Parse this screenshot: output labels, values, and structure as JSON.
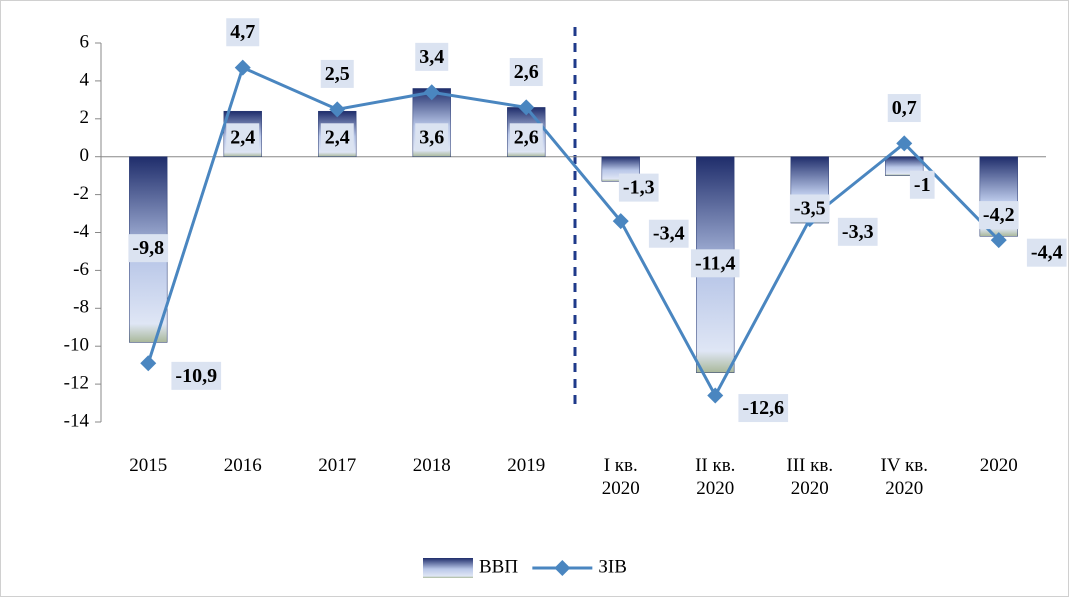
{
  "chart_data": {
    "type": "bar_line",
    "categories": [
      "2015",
      "2016",
      "2017",
      "2018",
      "2019",
      "І кв. 2020",
      "ІІ кв. 2020",
      "ІІІ кв. 2020",
      "ІV кв. 2020",
      "2020"
    ],
    "series": [
      {
        "name": "ВВП",
        "type": "bar",
        "color": "#22336e",
        "values": [
          -9.8,
          2.4,
          2.4,
          3.6,
          2.6,
          -1.3,
          -11.4,
          -3.5,
          -1,
          -4.2
        ],
        "value_labels": [
          "-9,8",
          "2,4",
          "2,4",
          "3,6",
          "2,6",
          "-1,3",
          "-11,4",
          "-3,5",
          "-1",
          "-4,2"
        ]
      },
      {
        "name": "ЗІВ",
        "type": "line",
        "color": "#4a86c0",
        "values": [
          -10.9,
          4.7,
          2.5,
          3.4,
          2.6,
          -3.4,
          -12.6,
          -3.3,
          0.7,
          -4.4
        ],
        "value_labels": [
          "-10,9",
          "4,7",
          "2,5",
          "3,4",
          "2,6",
          "-3,4",
          "-12,6",
          "-3,3",
          "0,7",
          "-4,4"
        ]
      }
    ],
    "ylim": [
      -14,
      6
    ],
    "yticks": [
      -14,
      -12,
      -10,
      -8,
      -6,
      -4,
      -2,
      0,
      2,
      4,
      6
    ],
    "legend": "bottom"
  }
}
